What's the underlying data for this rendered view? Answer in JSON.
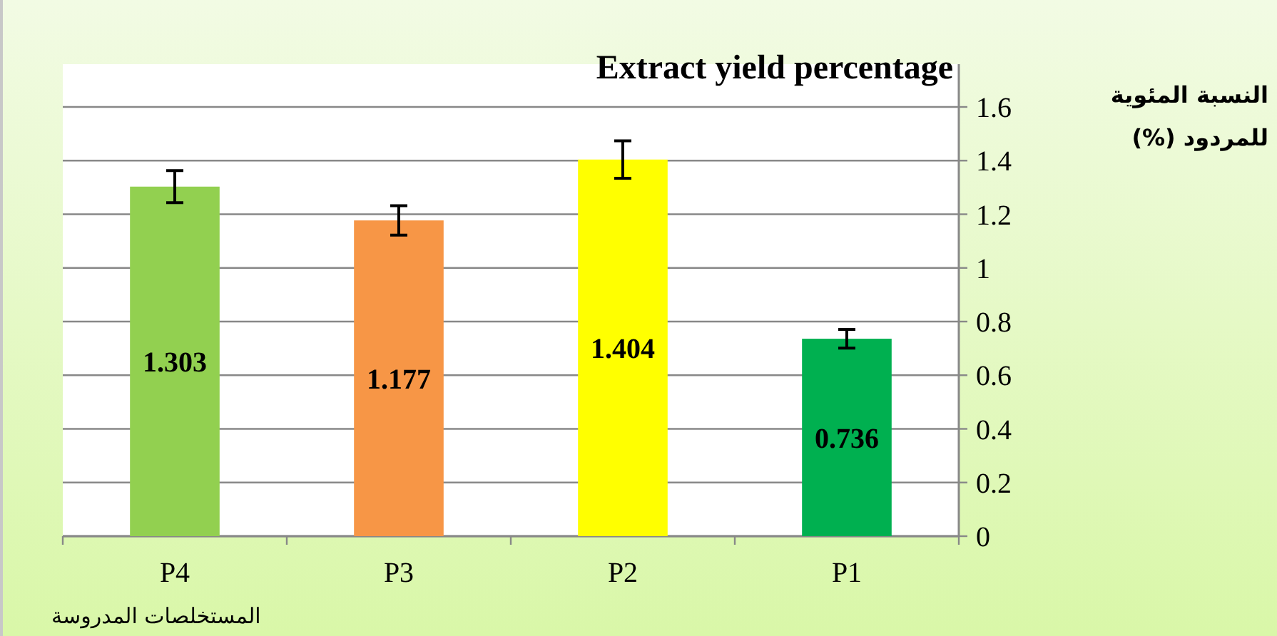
{
  "chart_data": {
    "type": "bar",
    "title": "Extract  yield  percentage",
    "xlabel": "المستخلصات المدروسة",
    "ylabel": "النسبة المئوية للمردود (%)",
    "categories": [
      "P4",
      "P3",
      "P2",
      "P1"
    ],
    "values": [
      1.303,
      1.177,
      1.404,
      0.736
    ],
    "colors": [
      "#92d050",
      "#f79646",
      "#ffff00",
      "#00b050"
    ],
    "errors": [
      0.06,
      0.055,
      0.07,
      0.035
    ],
    "data_labels": true,
    "ylim": [
      0,
      1.6
    ],
    "yticks": [
      0,
      0.2,
      0.4,
      0.6,
      0.8,
      1,
      1.2,
      1.4,
      1.6
    ],
    "grid": "y"
  }
}
